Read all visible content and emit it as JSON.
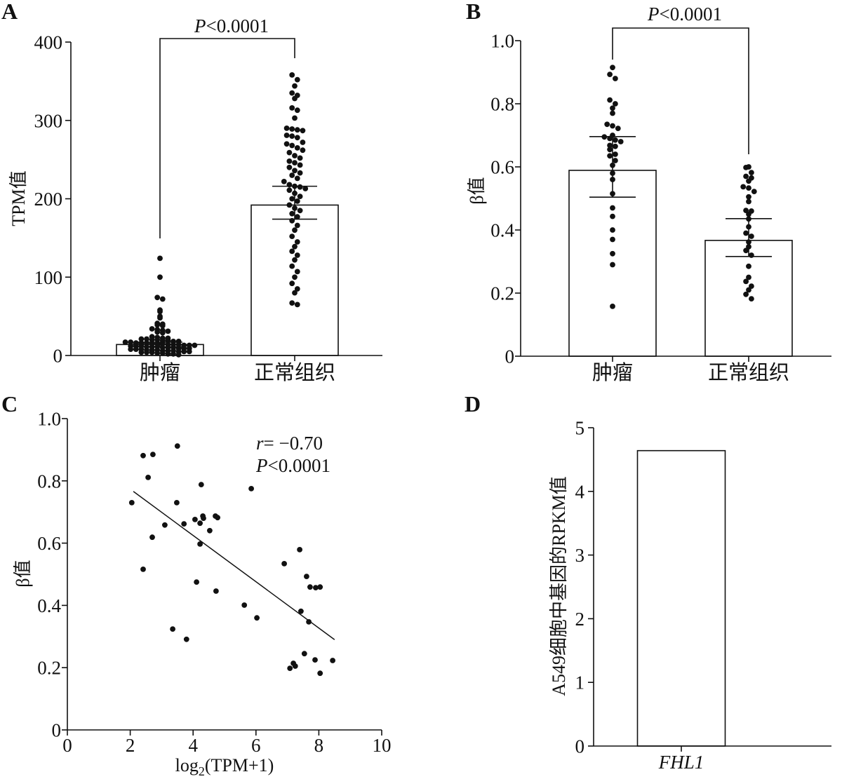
{
  "chart_data": [
    {
      "panel": "A",
      "type": "bar",
      "categories": [
        "肿瘤",
        "正常组织"
      ],
      "ylabel": "TPM值",
      "ylim": [
        0,
        400
      ],
      "yticks": [
        "0",
        "100",
        "200",
        "300",
        "400"
      ],
      "values": [
        14,
        192
      ],
      "error_low": [
        11,
        174
      ],
      "error_high": [
        17,
        216
      ],
      "points": [
        [
          124,
          100,
          74,
          72,
          58,
          56,
          50,
          48,
          41,
          40,
          39,
          38,
          34,
          33,
          32,
          31,
          30,
          29,
          24,
          23,
          22,
          22,
          21,
          21,
          20,
          20,
          19,
          19,
          18,
          18,
          17,
          17,
          16,
          16,
          16,
          15,
          15,
          15,
          14,
          14,
          14,
          13,
          13,
          13,
          12,
          12,
          12,
          11,
          11,
          11,
          10,
          10,
          10,
          9,
          9,
          9,
          8,
          8,
          8,
          7,
          7,
          7,
          6,
          6,
          6,
          5,
          5,
          5,
          4,
          4,
          4,
          3,
          3,
          2,
          2,
          1
        ],
        [
          358,
          352,
          344,
          335,
          332,
          328,
          316,
          313,
          303,
          290,
          289,
          288,
          287,
          281,
          280,
          278,
          272,
          270,
          268,
          265,
          262,
          259,
          255,
          252,
          248,
          246,
          243,
          240,
          236,
          233,
          230,
          226,
          222,
          218,
          216,
          215,
          213,
          211,
          207,
          203,
          200,
          197,
          192,
          188,
          185,
          181,
          177,
          172,
          166,
          160,
          152,
          145,
          139,
          133,
          128,
          122,
          114,
          107,
          100,
          92,
          85,
          80,
          67,
          65
        ]
      ],
      "annotation": "P<0.0001"
    },
    {
      "panel": "B",
      "type": "bar",
      "categories": [
        "肿瘤",
        "正常组织"
      ],
      "ylabel": "β值",
      "ylim": [
        0,
        1.0
      ],
      "yticks": [
        "0",
        "0.2",
        "0.4",
        "0.6",
        "0.8",
        "1.0"
      ],
      "values": [
        0.589,
        0.367
      ],
      "error_low": [
        0.504,
        0.316
      ],
      "error_high": [
        0.696,
        0.436
      ],
      "points": [
        [
          0.915,
          0.893,
          0.88,
          0.812,
          0.8,
          0.786,
          0.77,
          0.735,
          0.73,
          0.722,
          0.7,
          0.695,
          0.69,
          0.685,
          0.68,
          0.668,
          0.665,
          0.655,
          0.64,
          0.635,
          0.62,
          0.605,
          0.58,
          0.56,
          0.515,
          0.47,
          0.443,
          0.4,
          0.37,
          0.325,
          0.29,
          0.158
        ],
        [
          0.6,
          0.598,
          0.582,
          0.57,
          0.565,
          0.555,
          0.537,
          0.533,
          0.522,
          0.505,
          0.49,
          0.462,
          0.46,
          0.45,
          0.435,
          0.41,
          0.39,
          0.38,
          0.362,
          0.347,
          0.335,
          0.32,
          0.285,
          0.25,
          0.237,
          0.222,
          0.21,
          0.196,
          0.182
        ]
      ],
      "annotation": "P<0.0001"
    },
    {
      "panel": "C",
      "type": "scatter",
      "xlabel": {
        "base": "log",
        "sub": "2",
        "rest": "(TPM+1)"
      },
      "ylabel": "β值",
      "xlim": [
        0,
        10
      ],
      "ylim": [
        0,
        1.0
      ],
      "xticks": [
        "0",
        "2",
        "4",
        "6",
        "8",
        "10"
      ],
      "yticks": [
        "0",
        "0.2",
        "0.4",
        "0.6",
        "0.8",
        "1.0"
      ],
      "x": [
        2.05,
        2.41,
        2.72,
        2.57,
        3.5,
        2.7,
        2.41,
        3.1,
        3.48,
        3.71,
        3.35,
        3.79,
        4.06,
        4.26,
        4.31,
        4.22,
        4.33,
        4.22,
        4.53,
        4.11,
        4.71,
        4.78,
        4.73,
        5.85,
        5.63,
        6.03,
        6.9,
        7.39,
        7.61,
        7.72,
        7.9,
        8.04,
        7.43,
        7.68,
        7.54,
        7.08,
        7.19,
        7.25,
        7.88,
        8.04,
        8.44
      ],
      "y": [
        0.73,
        0.881,
        0.885,
        0.811,
        0.912,
        0.619,
        0.516,
        0.658,
        0.73,
        0.662,
        0.324,
        0.291,
        0.676,
        0.788,
        0.687,
        0.664,
        0.68,
        0.597,
        0.64,
        0.475,
        0.687,
        0.682,
        0.446,
        0.775,
        0.401,
        0.36,
        0.534,
        0.579,
        0.493,
        0.459,
        0.457,
        0.459,
        0.381,
        0.347,
        0.245,
        0.198,
        0.214,
        0.205,
        0.225,
        0.182,
        0.223
      ],
      "fit": {
        "x": [
          2.1,
          8.5
        ],
        "y": [
          0.766,
          0.29
        ]
      },
      "annotations": [
        "r= −0.70",
        "P<0.0001"
      ]
    },
    {
      "panel": "D",
      "type": "bar",
      "categories": [
        "FHL1"
      ],
      "ylabel": "A549细胞中基因的RPKM值",
      "ylim": [
        0,
        5
      ],
      "yticks": [
        "0",
        "1",
        "2",
        "3",
        "4",
        "5"
      ],
      "values": [
        4.64
      ]
    }
  ]
}
